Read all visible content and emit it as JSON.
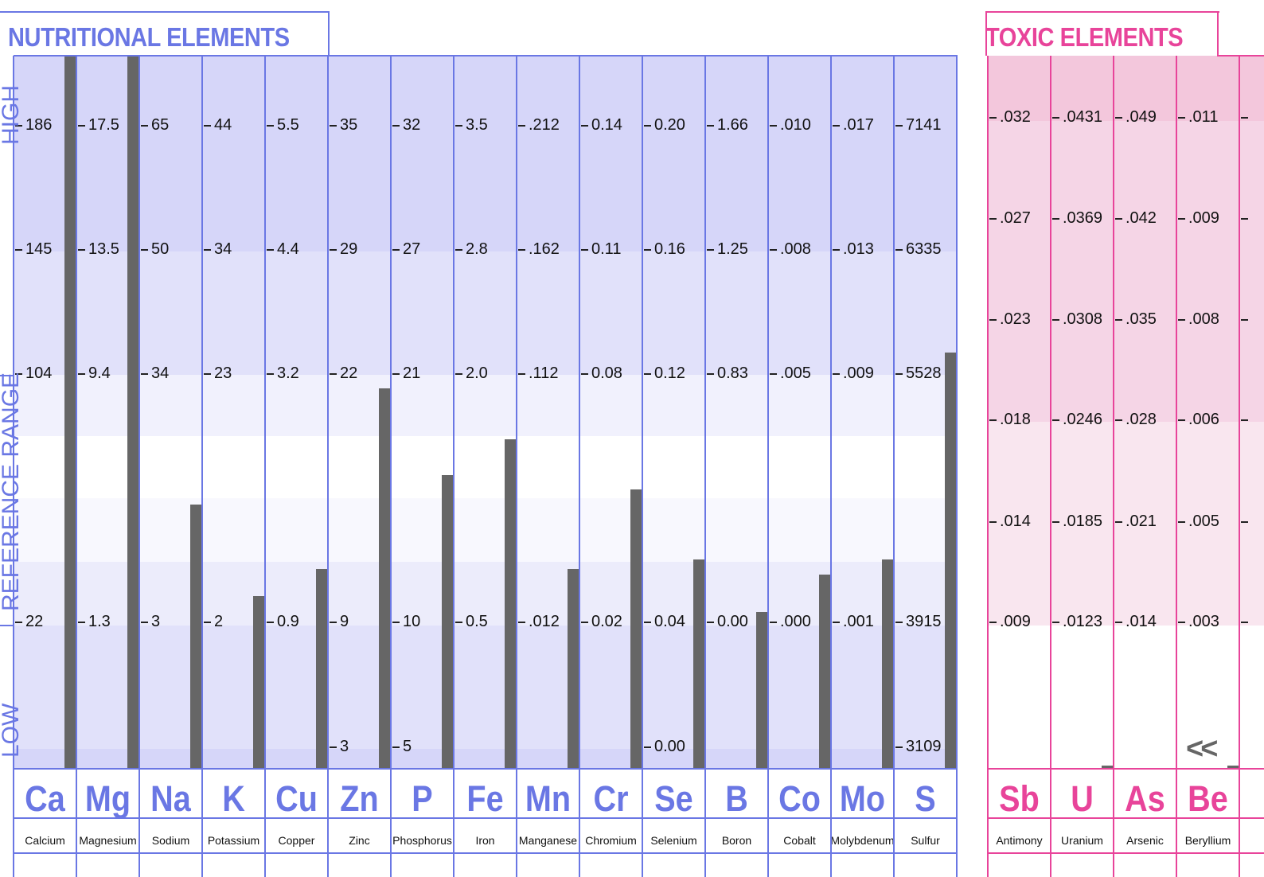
{
  "nutritional": {
    "title": "NUTRITIONAL  ELEMENTS",
    "side_labels": {
      "high": "HIGH",
      "reference": "REFERENCE  RANGE",
      "low": "LOW"
    },
    "color": "#6a77e4"
  },
  "toxic": {
    "title": "TOXIC  ELEMENTS",
    "color": "#e8449a",
    "more_indicator": "<<"
  },
  "chart_data": [
    {
      "type": "bar",
      "title": "NUTRITIONAL  ELEMENTS",
      "level_rows": [
        "high-1",
        "high-2",
        "ref-upper",
        "ref-lower",
        "low"
      ],
      "elements": [
        {
          "symbol": "Ca",
          "name": "Calcium",
          "levels": [
            "186",
            "145",
            "104",
            "22",
            ""
          ],
          "bar_level": 5.0
        },
        {
          "symbol": "Mg",
          "name": "Magnesium",
          "levels": [
            "17.5",
            "13.5",
            "9.4",
            "1.3",
            ""
          ],
          "bar_level": 5.0
        },
        {
          "symbol": "Na",
          "name": "Sodium",
          "levels": [
            "65",
            "50",
            "34",
            "3",
            ""
          ],
          "bar_level": 1.85
        },
        {
          "symbol": "K",
          "name": "Potassium",
          "levels": [
            "44",
            "34",
            "23",
            "2",
            ""
          ],
          "bar_level": 1.21
        },
        {
          "symbol": "Cu",
          "name": "Copper",
          "levels": [
            "5.5",
            "4.4",
            "3.2",
            "0.9",
            ""
          ],
          "bar_level": 1.4
        },
        {
          "symbol": "Zn",
          "name": "Zinc",
          "levels": [
            "35",
            "29",
            "22",
            "9",
            "3"
          ],
          "bar_level": 2.67
        },
        {
          "symbol": "P",
          "name": "Phosphorus",
          "levels": [
            "32",
            "27",
            "21",
            "10",
            "5"
          ],
          "bar_level": 2.06
        },
        {
          "symbol": "Fe",
          "name": "Iron",
          "levels": [
            "3.5",
            "2.8",
            "2.0",
            "0.5",
            ""
          ],
          "bar_level": 2.31
        },
        {
          "symbol": "Mn",
          "name": "Manganese",
          "levels": [
            ".212",
            ".162",
            ".112",
            ".012",
            ""
          ],
          "bar_level": 1.4
        },
        {
          "symbol": "Cr",
          "name": "Chromium",
          "levels": [
            "0.14",
            "0.11",
            "0.08",
            "0.02",
            ""
          ],
          "bar_level": 1.96
        },
        {
          "symbol": "Se",
          "name": "Selenium",
          "levels": [
            "0.20",
            "0.16",
            "0.12",
            "0.04",
            "0.00"
          ],
          "bar_level": 1.47
        },
        {
          "symbol": "B",
          "name": "Boron",
          "levels": [
            "1.66",
            "1.25",
            "0.83",
            "0.00",
            ""
          ],
          "bar_level": 1.1
        },
        {
          "symbol": "Co",
          "name": "Cobalt",
          "levels": [
            ".010",
            ".008",
            ".005",
            ".000",
            ""
          ],
          "bar_level": 1.36
        },
        {
          "symbol": "Mo",
          "name": "Molybdenum",
          "levels": [
            ".017",
            ".013",
            ".009",
            ".001",
            ""
          ],
          "bar_level": 1.47
        },
        {
          "symbol": "S",
          "name": "Sulfur",
          "levels": [
            "7141",
            "6335",
            "5528",
            "3915",
            "3109"
          ],
          "bar_level": 2.92
        }
      ]
    },
    {
      "type": "bar",
      "title": "TOXIC  ELEMENTS",
      "level_rows": [
        "r1",
        "r2",
        "r3",
        "r4",
        "r5",
        "r6"
      ],
      "elements": [
        {
          "symbol": "Sb",
          "name": "Antimony",
          "levels": [
            ".032",
            ".027",
            ".023",
            ".018",
            ".014",
            ".009"
          ],
          "bar_level": 0
        },
        {
          "symbol": "U",
          "name": "Uranium",
          "levels": [
            ".0431",
            ".0369",
            ".0308",
            ".0246",
            ".0185",
            ".0123"
          ],
          "bar_level": 0.02
        },
        {
          "symbol": "As",
          "name": "Arsenic",
          "levels": [
            ".049",
            ".042",
            ".035",
            ".028",
            ".021",
            ".014"
          ],
          "bar_level": 0
        },
        {
          "symbol": "Be",
          "name": "Beryllium",
          "levels": [
            ".011",
            ".009",
            ".008",
            ".006",
            ".005",
            ".003"
          ],
          "bar_level": 0.02
        }
      ]
    }
  ]
}
